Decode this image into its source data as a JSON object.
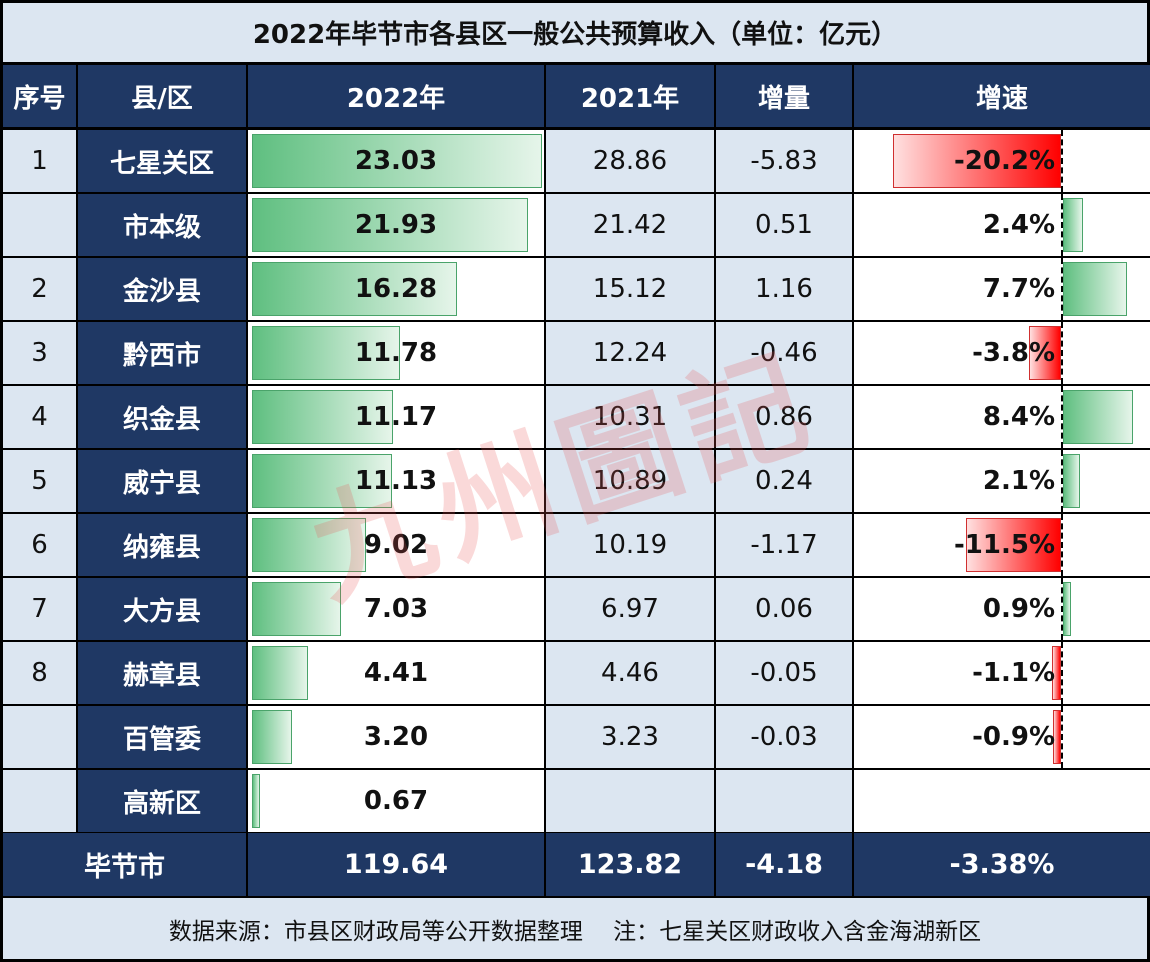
{
  "title": "2022年毕节市各县区一般公共预算收入（单位：亿元）",
  "headers": [
    "序号",
    "县/区",
    "2022年",
    "2021年",
    "增量",
    "增速"
  ],
  "rows": [
    {
      "no": "1",
      "name": "七星关区",
      "y2022": "23.03",
      "y2021": "28.86",
      "delta": "-5.83",
      "growth": "-20.2%"
    },
    {
      "no": "",
      "name": "市本级",
      "y2022": "21.93",
      "y2021": "21.42",
      "delta": "0.51",
      "growth": "2.4%"
    },
    {
      "no": "2",
      "name": "金沙县",
      "y2022": "16.28",
      "y2021": "15.12",
      "delta": "1.16",
      "growth": "7.7%"
    },
    {
      "no": "3",
      "name": "黔西市",
      "y2022": "11.78",
      "y2021": "12.24",
      "delta": "-0.46",
      "growth": "-3.8%"
    },
    {
      "no": "4",
      "name": "织金县",
      "y2022": "11.17",
      "y2021": "10.31",
      "delta": "0.86",
      "growth": "8.4%"
    },
    {
      "no": "5",
      "name": "威宁县",
      "y2022": "11.13",
      "y2021": "10.89",
      "delta": "0.24",
      "growth": "2.1%"
    },
    {
      "no": "6",
      "name": "纳雍县",
      "y2022": "9.02",
      "y2021": "10.19",
      "delta": "-1.17",
      "growth": "-11.5%"
    },
    {
      "no": "7",
      "name": "大方县",
      "y2022": "7.03",
      "y2021": "6.97",
      "delta": "0.06",
      "growth": "0.9%"
    },
    {
      "no": "8",
      "name": "赫章县",
      "y2022": "4.41",
      "y2021": "4.46",
      "delta": "-0.05",
      "growth": "-1.1%"
    },
    {
      "no": "",
      "name": "百管委",
      "y2022": "3.20",
      "y2021": "3.23",
      "delta": "-0.03",
      "growth": "-0.9%"
    },
    {
      "no": "",
      "name": "高新区",
      "y2022": "0.67",
      "y2021": "",
      "delta": "",
      "growth": ""
    }
  ],
  "total": {
    "name": "毕节市",
    "y2022": "119.64",
    "y2021": "123.82",
    "delta": "-4.18",
    "growth": "-3.38%"
  },
  "footer": "数据来源：市县区财政局等公开数据整理　 注：七星关区财政收入含金海湖新区",
  "watermark": "九州圖記",
  "colors": {
    "header_bg": "#1f3864",
    "light_cell": "#dce6f1",
    "bar_positive": "#5fbf80",
    "bar_negative": "#ff0000"
  },
  "chart_data": {
    "type": "table",
    "title": "2022年毕节市各县区一般公共预算收入（单位：亿元）",
    "columns": [
      "序号",
      "县/区",
      "2022年",
      "2021年",
      "增量",
      "增速"
    ],
    "categories": [
      "七星关区",
      "市本级",
      "金沙县",
      "黔西市",
      "织金县",
      "威宁县",
      "纳雍县",
      "大方县",
      "赫章县",
      "百管委",
      "高新区"
    ],
    "series": [
      {
        "name": "2022年",
        "values": [
          23.03,
          21.93,
          16.28,
          11.78,
          11.17,
          11.13,
          9.02,
          7.03,
          4.41,
          3.2,
          0.67
        ]
      },
      {
        "name": "2021年",
        "values": [
          28.86,
          21.42,
          15.12,
          12.24,
          10.31,
          10.89,
          10.19,
          6.97,
          4.46,
          3.23,
          null
        ]
      },
      {
        "name": "增量",
        "values": [
          -5.83,
          0.51,
          1.16,
          -0.46,
          0.86,
          0.24,
          -1.17,
          0.06,
          -0.05,
          -0.03,
          null
        ]
      },
      {
        "name": "增速(%)",
        "values": [
          -20.2,
          2.4,
          7.7,
          -3.8,
          8.4,
          2.1,
          -11.5,
          0.9,
          -1.1,
          -0.9,
          null
        ]
      }
    ],
    "total": {
      "name": "毕节市",
      "2022年": 119.64,
      "2021年": 123.82,
      "增量": -4.18,
      "增速(%)": -3.38
    }
  }
}
